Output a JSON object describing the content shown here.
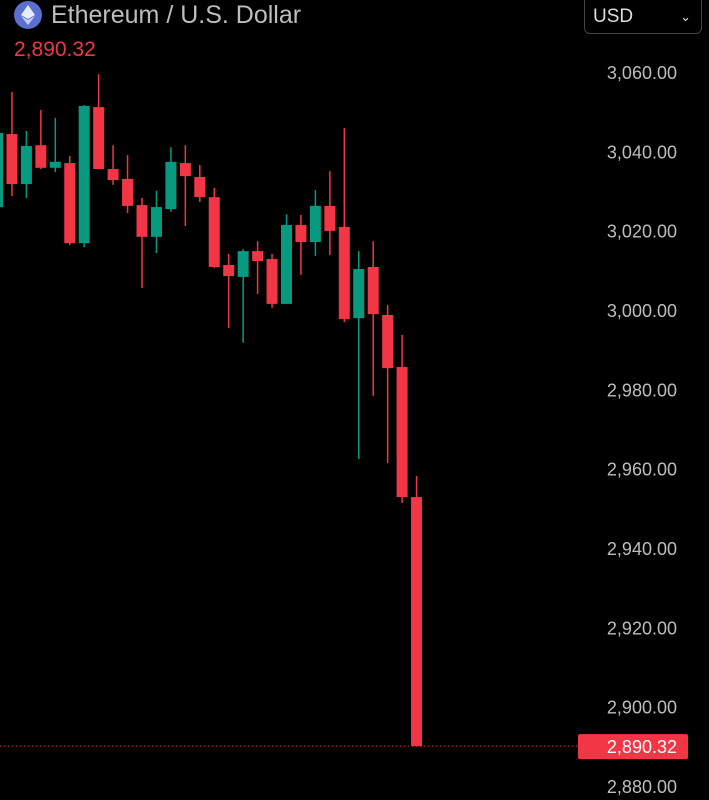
{
  "header": {
    "title": "Ethereum / U.S. Dollar",
    "last_price": "2,890.32",
    "logo_icon": "ethereum-icon"
  },
  "currency_select": {
    "value": "USD"
  },
  "colors": {
    "up": "#089981",
    "down": "#f23645",
    "background": "#000000"
  },
  "chart_data": {
    "type": "candlestick",
    "title": "Ethereum / U.S. Dollar",
    "ylim": [
      2877,
      3068
    ],
    "y_ticks": [
      "3,060.00",
      "3,040.00",
      "3,020.00",
      "3,000.00",
      "2,980.00",
      "2,960.00",
      "2,940.00",
      "2,920.00",
      "2,900.00",
      "2,880.00"
    ],
    "y_tick_values": [
      3060,
      3040,
      3020,
      3000,
      2980,
      2960,
      2940,
      2920,
      2900,
      2880
    ],
    "current_price_label": "2,890.32",
    "current_price": 2890.32,
    "grid": false,
    "candles": [
      {
        "o": 3026.2,
        "h": 3045.2,
        "l": 3026.0,
        "c": 3044.9
      },
      {
        "o": 3044.6,
        "h": 3055.2,
        "l": 3029.0,
        "c": 3032.0
      },
      {
        "o": 3032.0,
        "h": 3045.4,
        "l": 3028.5,
        "c": 3041.6
      },
      {
        "o": 3041.8,
        "h": 3050.7,
        "l": 3035.8,
        "c": 3036.1
      },
      {
        "o": 3036.1,
        "h": 3048.7,
        "l": 3035.0,
        "c": 3037.6
      },
      {
        "o": 3037.3,
        "h": 3039.1,
        "l": 3016.6,
        "c": 3017.1
      },
      {
        "o": 3017.1,
        "h": 3051.9,
        "l": 3016.1,
        "c": 3051.7
      },
      {
        "o": 3051.4,
        "h": 3059.7,
        "l": 3035.8,
        "c": 3035.8
      },
      {
        "o": 3035.8,
        "h": 3041.8,
        "l": 3031.8,
        "c": 3033.0
      },
      {
        "o": 3033.3,
        "h": 3039.3,
        "l": 3024.7,
        "c": 3026.5
      },
      {
        "o": 3026.7,
        "h": 3028.5,
        "l": 3005.8,
        "c": 3018.7
      },
      {
        "o": 3018.7,
        "h": 3030.3,
        "l": 3014.6,
        "c": 3026.2
      },
      {
        "o": 3025.7,
        "h": 3041.3,
        "l": 3025.0,
        "c": 3037.6
      },
      {
        "o": 3037.3,
        "h": 3041.8,
        "l": 3021.4,
        "c": 3034.0
      },
      {
        "o": 3033.8,
        "h": 3036.8,
        "l": 3027.5,
        "c": 3028.7
      },
      {
        "o": 3028.7,
        "h": 3031.0,
        "l": 3010.9,
        "c": 3011.1
      },
      {
        "o": 3011.6,
        "h": 3014.4,
        "l": 2995.7,
        "c": 3008.8
      },
      {
        "o": 3008.6,
        "h": 3015.6,
        "l": 2992.0,
        "c": 3015.1
      },
      {
        "o": 3015.1,
        "h": 3017.6,
        "l": 3004.3,
        "c": 3012.6
      },
      {
        "o": 3013.1,
        "h": 3014.4,
        "l": 3000.8,
        "c": 3001.8
      },
      {
        "o": 3001.8,
        "h": 3024.4,
        "l": 3001.8,
        "c": 3021.7
      },
      {
        "o": 3021.7,
        "h": 3024.2,
        "l": 3009.1,
        "c": 3017.4
      },
      {
        "o": 3017.4,
        "h": 3030.5,
        "l": 3013.9,
        "c": 3026.5
      },
      {
        "o": 3026.5,
        "h": 3035.3,
        "l": 3014.1,
        "c": 3020.2
      },
      {
        "o": 3021.2,
        "h": 3046.1,
        "l": 2997.2,
        "c": 2998.0
      },
      {
        "o": 2998.2,
        "h": 3015.1,
        "l": 2962.7,
        "c": 3010.6
      },
      {
        "o": 3011.1,
        "h": 3017.6,
        "l": 2978.6,
        "c": 2999.2
      },
      {
        "o": 2999.0,
        "h": 3001.5,
        "l": 2961.7,
        "c": 2985.6
      },
      {
        "o": 2985.9,
        "h": 2994.0,
        "l": 2951.6,
        "c": 2953.1
      },
      {
        "o": 2953.1,
        "h": 2958.4,
        "l": 2890.3,
        "c": 2890.32
      }
    ]
  }
}
